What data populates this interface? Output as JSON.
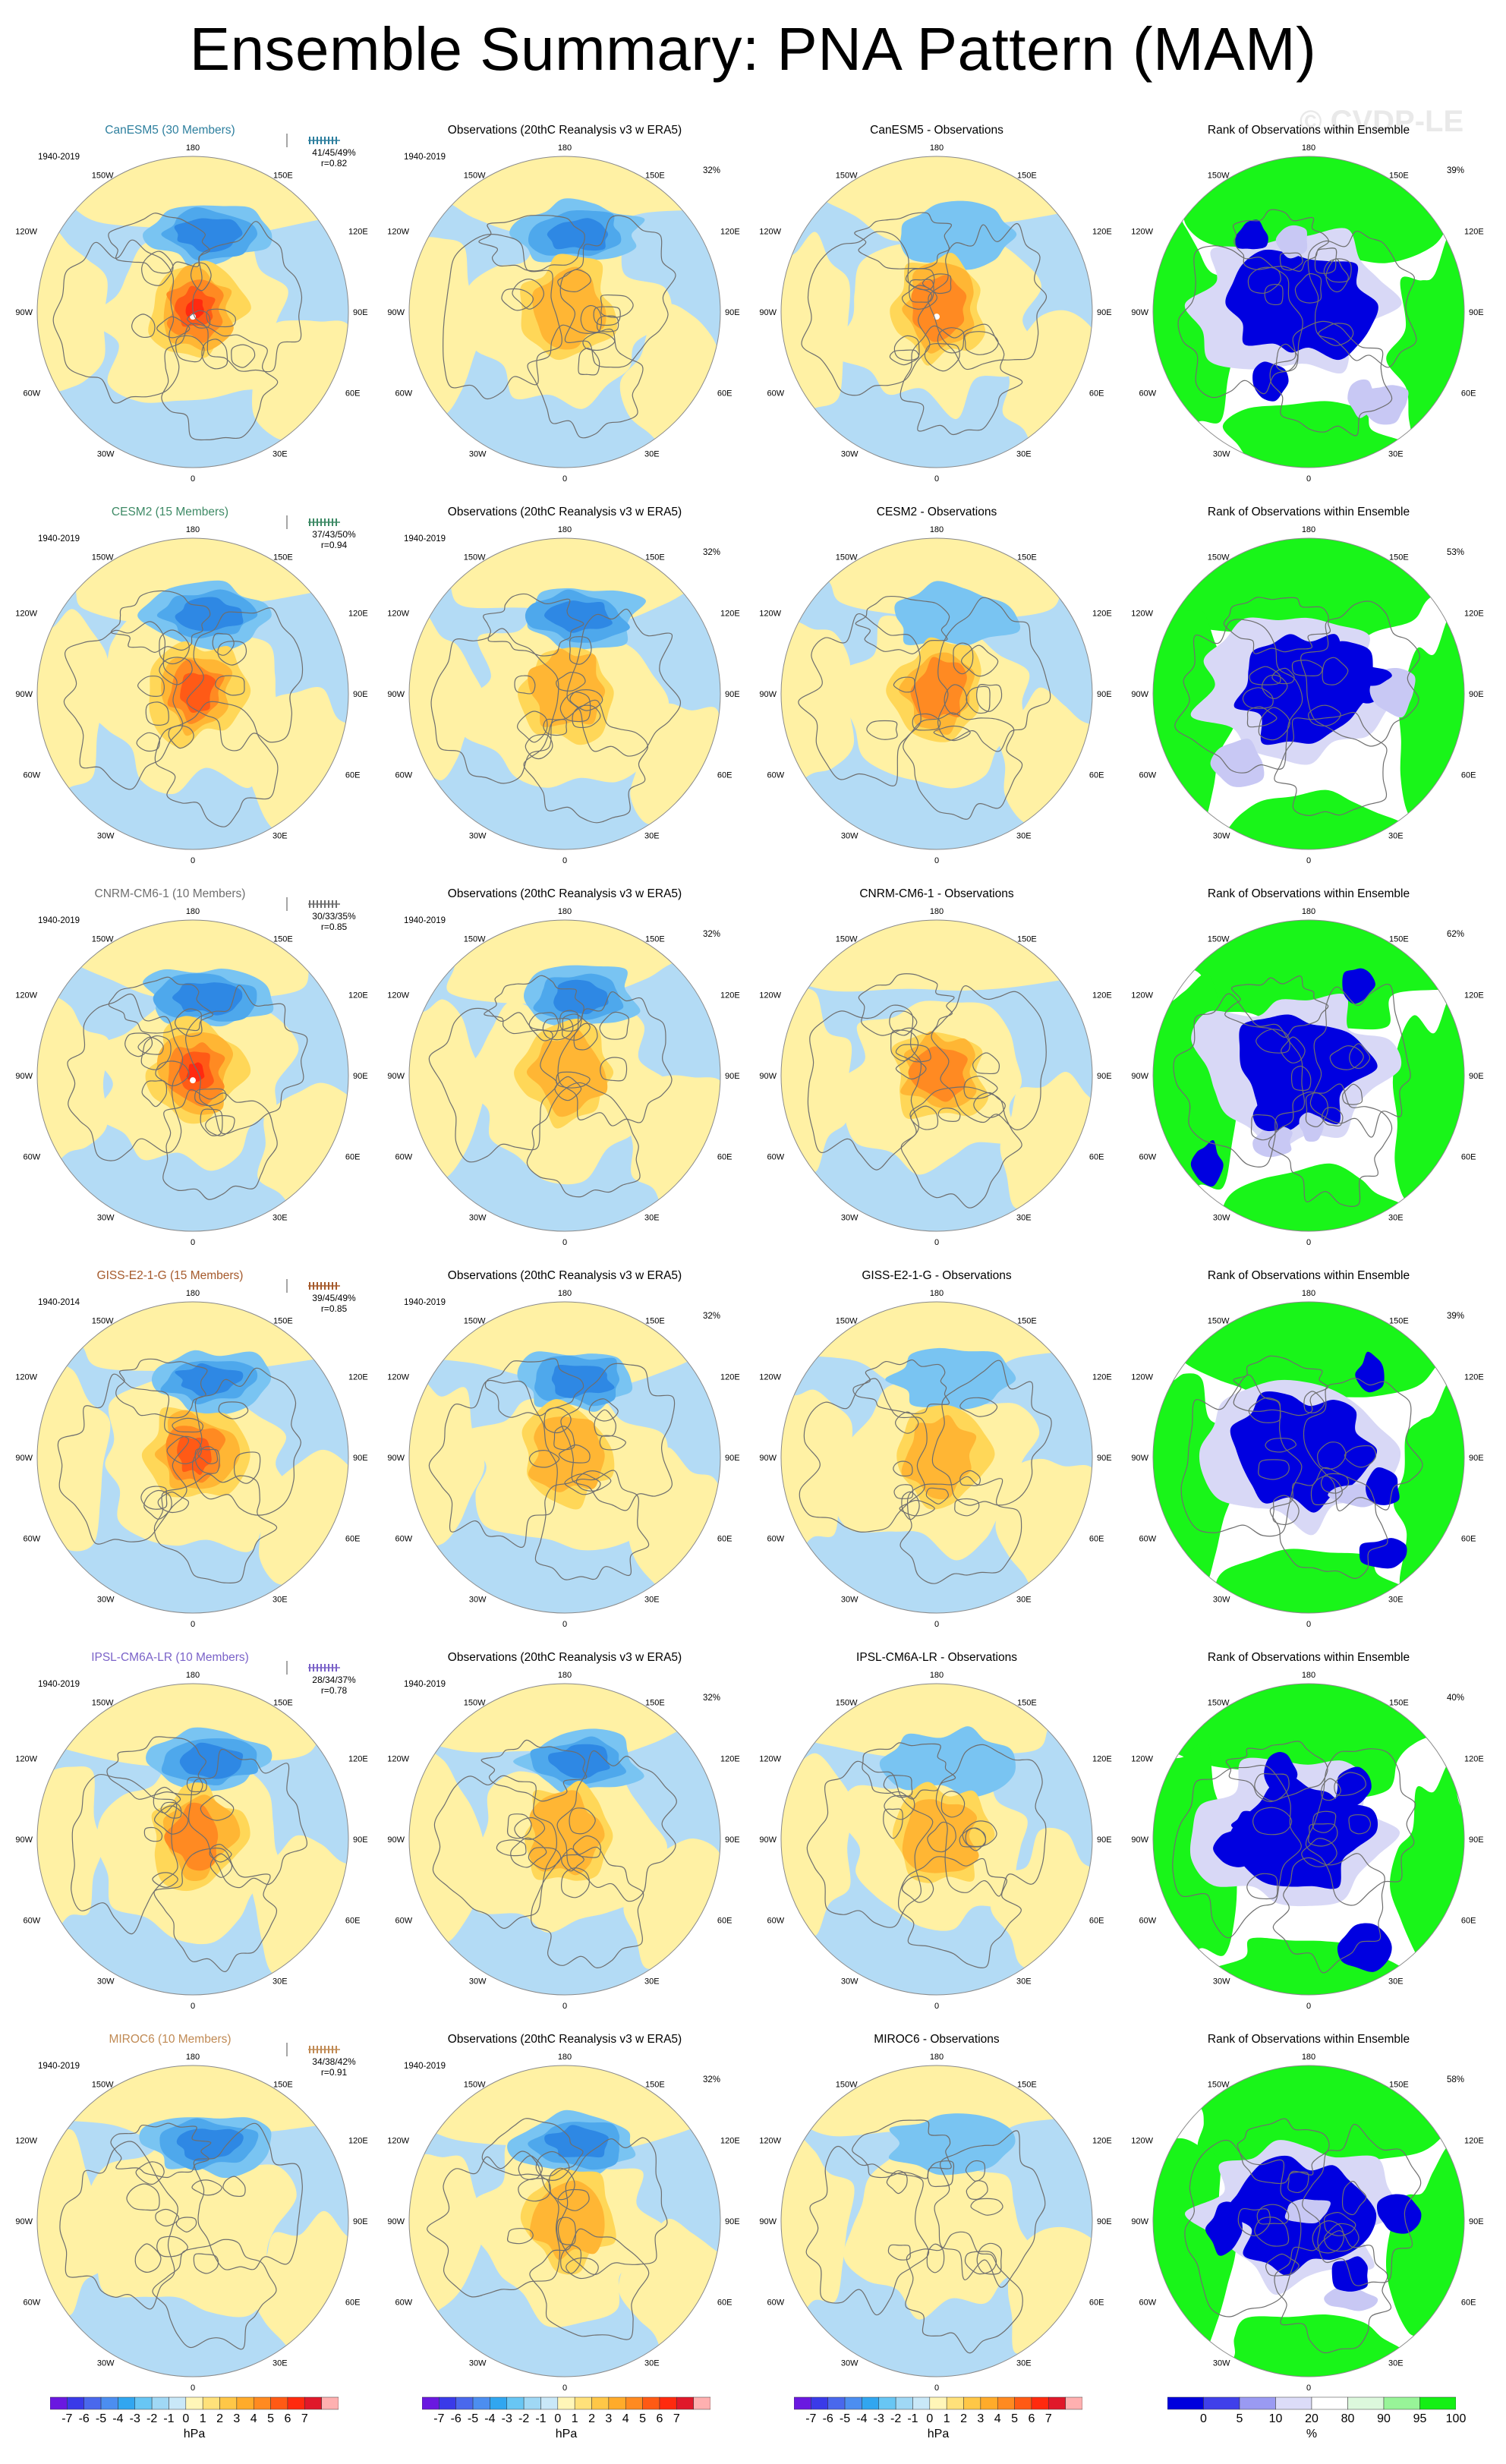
{
  "page": {
    "title": "Ensemble Summary: PNA Pattern (MAM)",
    "watermark": "© CVDP-LE"
  },
  "colors": {
    "model_titles": [
      "#2d7f9e",
      "#3e8a66",
      "#6f6f6f",
      "#a55a2c",
      "#7a62c8",
      "#c08a54"
    ],
    "rank_green": "#19f519",
    "rank_blue": "#0000e0",
    "ocean_blue": "#b3dbf5",
    "land_yellow": "#fff1a4"
  },
  "map_labels": {
    "top": "180",
    "bottom": "0",
    "upper_left": "150W",
    "upper_right": "150E",
    "mid_upper_left": "120W",
    "mid_upper_right": "120E",
    "left": "90W",
    "right": "90E",
    "mid_lower_left": "60W",
    "mid_lower_right": "60E",
    "lower_left": "30W",
    "lower_right": "30E"
  },
  "rows": [
    {
      "model_title": "CanESM5 (30 Members)",
      "years": "1940-2019",
      "stats1": "41/45/49%",
      "stats2": "r=0.82",
      "obs_title": "Observations (20thC Reanalysis v3 w ERA5)",
      "obs_years": "1940-2019",
      "obs_pct": "32%",
      "diff_title": "CanESM5 - Observations",
      "rank_title": "Rank of Observations within Ensemble",
      "rank_pct": "39%"
    },
    {
      "model_title": "CESM2 (15 Members)",
      "years": "1940-2019",
      "stats1": "37/43/50%",
      "stats2": "r=0.94",
      "obs_title": "Observations (20thC Reanalysis v3 w ERA5)",
      "obs_years": "1940-2019",
      "obs_pct": "32%",
      "diff_title": "CESM2 - Observations",
      "rank_title": "Rank of Observations within Ensemble",
      "rank_pct": "53%"
    },
    {
      "model_title": "CNRM-CM6-1 (10 Members)",
      "years": "1940-2019",
      "stats1": "30/33/35%",
      "stats2": "r=0.85",
      "obs_title": "Observations (20thC Reanalysis v3 w ERA5)",
      "obs_years": "1940-2019",
      "obs_pct": "32%",
      "diff_title": "CNRM-CM6-1 - Observations",
      "rank_title": "Rank of Observations within Ensemble",
      "rank_pct": "62%"
    },
    {
      "model_title": "GISS-E2-1-G (15 Members)",
      "years": "1940-2014",
      "stats1": "39/45/49%",
      "stats2": "r=0.85",
      "obs_title": "Observations (20thC Reanalysis v3 w ERA5)",
      "obs_years": "1940-2019",
      "obs_pct": "32%",
      "diff_title": "GISS-E2-1-G - Observations",
      "rank_title": "Rank of Observations within Ensemble",
      "rank_pct": "39%"
    },
    {
      "model_title": "IPSL-CM6A-LR (10 Members)",
      "years": "1940-2019",
      "stats1": "28/34/37%",
      "stats2": "r=0.78",
      "obs_title": "Observations (20thC Reanalysis v3 w ERA5)",
      "obs_years": "1940-2019",
      "obs_pct": "32%",
      "diff_title": "IPSL-CM6A-LR - Observations",
      "rank_title": "Rank of Observations within Ensemble",
      "rank_pct": "40%"
    },
    {
      "model_title": "MIROC6 (10 Members)",
      "years": "1940-2019",
      "stats1": "34/38/42%",
      "stats2": "r=0.91",
      "obs_title": "Observations (20thC Reanalysis v3 w ERA5)",
      "obs_years": "1940-2019",
      "obs_pct": "32%",
      "diff_title": "MIROC6 - Observations",
      "rank_title": "Rank of Observations within Ensemble",
      "rank_pct": "58%"
    }
  ],
  "colorbars": {
    "hpa_labels": [
      "-7",
      "-6",
      "-5",
      "-4",
      "-3",
      "-2",
      "-1",
      "0",
      "1",
      "2",
      "3",
      "4",
      "5",
      "6",
      "7"
    ],
    "hpa_colors": [
      "#6a18e0",
      "#3a3ae8",
      "#4a68ec",
      "#4c8ef0",
      "#31a6f0",
      "#68c6f4",
      "#a0d8f5",
      "#c9e8f8",
      "#fff6b8",
      "#ffe17a",
      "#ffc747",
      "#ffab2a",
      "#ff8a20",
      "#ff5a14",
      "#ff2a0e",
      "#e0182a",
      "#ffb0b0"
    ],
    "hpa_unit": "hPa",
    "rank_labels": [
      "0",
      "5",
      "10",
      "20",
      "80",
      "90",
      "95",
      "100"
    ],
    "rank_colors": [
      "#0000dd",
      "#4040ea",
      "#9a9af2",
      "#dcdcf8",
      "#ffffff",
      "#dcf8dc",
      "#98f498",
      "#14f014"
    ],
    "rank_unit": "%"
  }
}
